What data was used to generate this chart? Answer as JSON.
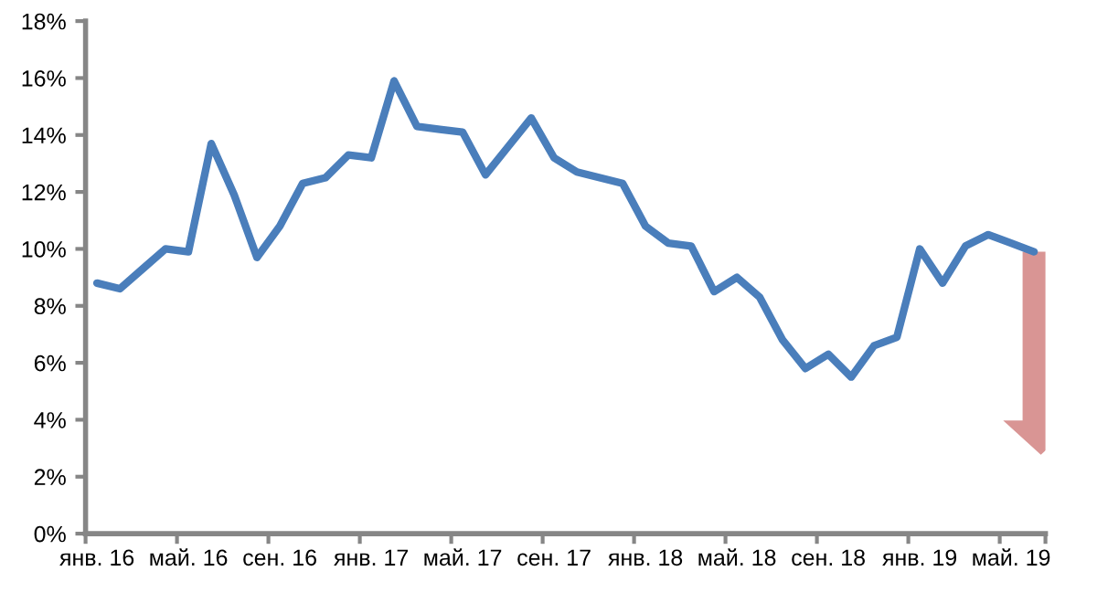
{
  "chart_data": {
    "type": "line",
    "categories": [
      "янв. 16",
      null,
      null,
      null,
      "май. 16",
      null,
      null,
      null,
      "сен. 16",
      null,
      null,
      null,
      "янв. 17",
      null,
      null,
      null,
      "май. 17",
      null,
      null,
      null,
      "сен. 17",
      null,
      null,
      null,
      "янв. 18",
      null,
      null,
      null,
      "май. 18",
      null,
      null,
      null,
      "сен. 18",
      null,
      null,
      null,
      "янв. 19",
      null,
      null,
      null,
      "май. 19",
      null
    ],
    "series": [
      {
        "color": "#4a7ebb",
        "values": [
          8.8,
          8.6,
          9.3,
          10.0,
          9.9,
          13.7,
          11.9,
          9.7,
          10.8,
          12.3,
          12.5,
          13.3,
          13.2,
          15.9,
          14.3,
          14.2,
          14.1,
          12.6,
          13.6,
          14.6,
          13.2,
          12.7,
          12.5,
          12.3,
          10.8,
          10.2,
          10.1,
          8.5,
          9.0,
          8.3,
          6.8,
          5.8,
          6.3,
          5.5,
          6.6,
          6.9,
          10.0,
          8.8,
          10.1,
          10.5,
          10.2,
          9.9
        ]
      }
    ],
    "ylim": [
      0,
      18
    ],
    "yticks": [
      {
        "value": 0,
        "label": "0%"
      },
      {
        "value": 2,
        "label": "2%"
      },
      {
        "value": 4,
        "label": "4%"
      },
      {
        "value": 6,
        "label": "6%"
      },
      {
        "value": 8,
        "label": "8%"
      },
      {
        "value": 10,
        "label": "10%"
      },
      {
        "value": 12,
        "label": "12%"
      },
      {
        "value": 14,
        "label": "14%"
      },
      {
        "value": 16,
        "label": "16%"
      },
      {
        "value": 18,
        "label": "18%"
      }
    ],
    "grid": false,
    "legend": false,
    "marker": "none",
    "line_style": "solid"
  }
}
